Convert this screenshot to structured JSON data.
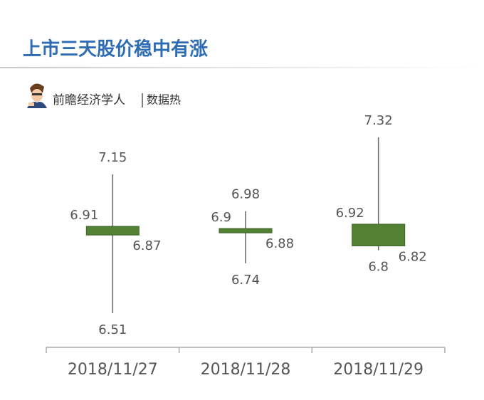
{
  "chart_data": {
    "type": "candlestick",
    "title": "上市三天股价稳中有涨",
    "author": "前瞻经济学人",
    "source": "数据热",
    "categories": [
      "2018/11/27",
      "2018/11/28",
      "2018/11/29"
    ],
    "open": [
      6.91,
      6.9,
      6.92
    ],
    "close": [
      6.87,
      6.88,
      6.82
    ],
    "high": [
      7.15,
      6.98,
      7.32
    ],
    "low": [
      6.51,
      6.74,
      6.8
    ],
    "color": "#548235"
  }
}
